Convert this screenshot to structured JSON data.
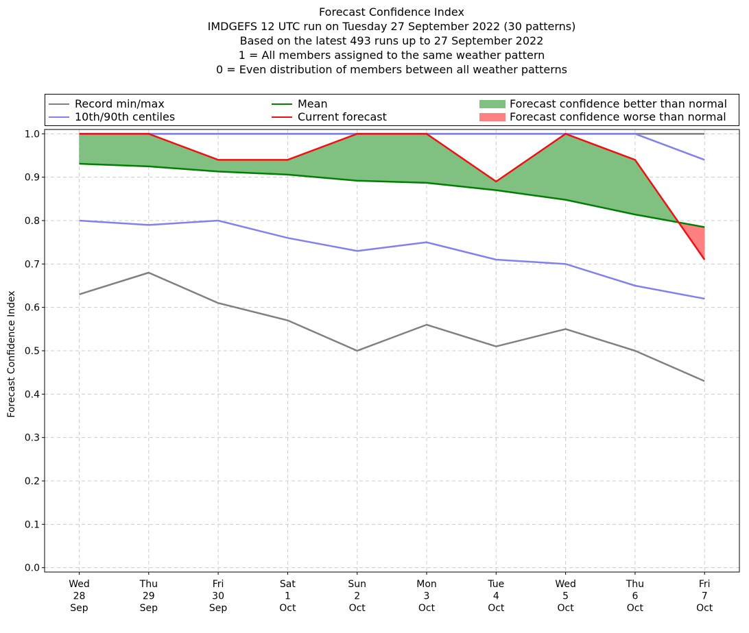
{
  "chart_data": {
    "type": "line",
    "title_lines": [
      "Forecast Confidence Index",
      "IMDGEFS 12 UTC run on Tuesday 27 September 2022 (30 patterns)",
      "Based on the latest 493 runs up to 27 September 2022",
      "1 = All members assigned to the same weather pattern",
      "0 = Even distribution of members between all weather patterns"
    ],
    "ylabel": "Forecast Confidence Index",
    "xlabel": "",
    "ylim": [
      -0.01,
      1.01
    ],
    "yticks": [
      "0.0",
      "0.1",
      "0.2",
      "0.3",
      "0.4",
      "0.5",
      "0.6",
      "0.7",
      "0.8",
      "0.9",
      "1.0"
    ],
    "ytick_values": [
      0,
      0.1,
      0.2,
      0.3,
      0.4,
      0.5,
      0.6,
      0.7,
      0.8,
      0.9,
      1.0
    ],
    "grid": true,
    "legend_placement": "top",
    "categories": [
      [
        "Wed",
        "28",
        "Sep"
      ],
      [
        "Thu",
        "29",
        "Sep"
      ],
      [
        "Fri",
        "30",
        "Sep"
      ],
      [
        "Sat",
        "1",
        "Oct"
      ],
      [
        "Sun",
        "2",
        "Oct"
      ],
      [
        "Mon",
        "3",
        "Oct"
      ],
      [
        "Tue",
        "4",
        "Oct"
      ],
      [
        "Wed",
        "5",
        "Oct"
      ],
      [
        "Thu",
        "6",
        "Oct"
      ],
      [
        "Fri",
        "7",
        "Oct"
      ]
    ],
    "series": [
      {
        "name": "Record min/max",
        "kind": "line",
        "color": "#808080",
        "values": [
          0.63,
          0.68,
          0.61,
          0.57,
          0.5,
          0.56,
          0.51,
          0.55,
          0.5,
          0.43
        ],
        "values_upper": [
          1.0,
          1.0,
          1.0,
          1.0,
          1.0,
          1.0,
          1.0,
          1.0,
          1.0,
          1.0
        ]
      },
      {
        "name": "10th/90th centiles",
        "kind": "line",
        "color": "#8080f0",
        "values": [
          0.8,
          0.79,
          0.8,
          0.76,
          0.73,
          0.75,
          0.71,
          0.7,
          0.65,
          0.62
        ],
        "values_upper": [
          1.0,
          1.0,
          1.0,
          1.0,
          1.0,
          1.0,
          1.0,
          1.0,
          1.0,
          0.94
        ]
      },
      {
        "name": "Mean",
        "kind": "line",
        "color": "#008000",
        "values": [
          0.931,
          0.925,
          0.913,
          0.906,
          0.892,
          0.887,
          0.87,
          0.848,
          0.814,
          0.785
        ]
      },
      {
        "name": "Current forecast",
        "kind": "line",
        "color": "#ee1111",
        "values": [
          1.0,
          1.0,
          0.94,
          0.94,
          1.0,
          1.0,
          0.89,
          1.0,
          0.94,
          0.71
        ]
      },
      {
        "name": "Forecast confidence better than normal",
        "kind": "fill",
        "color": "#80c080"
      },
      {
        "name": "Forecast confidence worse than normal",
        "kind": "fill",
        "color": "#ff8080"
      }
    ]
  }
}
